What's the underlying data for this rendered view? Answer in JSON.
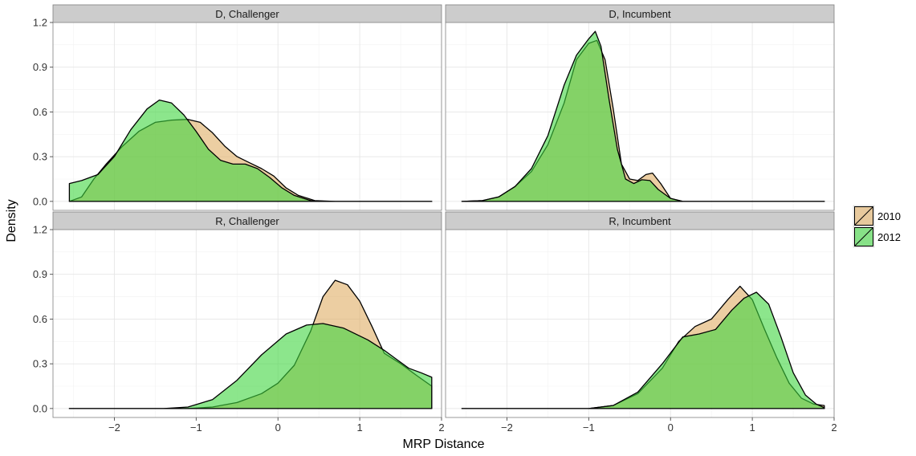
{
  "chart_data": {
    "type": "area",
    "xlabel": "MRP Distance",
    "ylabel": "Density",
    "xlim": [
      -2.75,
      2.0
    ],
    "ylim": [
      -0.06,
      1.2
    ],
    "x_ticks": [
      -2,
      -1,
      0,
      1,
      2
    ],
    "y_ticks": [
      0.0,
      0.3,
      0.6,
      0.9,
      1.2
    ],
    "x_tick_labels": [
      "−2",
      "−1",
      "0",
      "1",
      "2"
    ],
    "y_tick_labels": [
      "0.0",
      "0.3",
      "0.6",
      "0.9",
      "1.2"
    ],
    "grid": true,
    "legend": {
      "placement": "right",
      "entries": [
        {
          "name": "2010",
          "color": "#e8c28a"
        },
        {
          "name": "2012",
          "color": "#7fe07f"
        }
      ]
    },
    "panels": [
      {
        "title": "D, Challenger",
        "series": [
          {
            "name": "2010",
            "points": [
              [
                -2.55,
                0.0
              ],
              [
                -2.4,
                0.03
              ],
              [
                -2.25,
                0.15
              ],
              [
                -2.1,
                0.25
              ],
              [
                -1.9,
                0.37
              ],
              [
                -1.7,
                0.47
              ],
              [
                -1.5,
                0.53
              ],
              [
                -1.3,
                0.545
              ],
              [
                -1.1,
                0.55
              ],
              [
                -0.95,
                0.53
              ],
              [
                -0.8,
                0.46
              ],
              [
                -0.65,
                0.37
              ],
              [
                -0.5,
                0.3
              ],
              [
                -0.35,
                0.26
              ],
              [
                -0.2,
                0.22
              ],
              [
                -0.05,
                0.17
              ],
              [
                0.1,
                0.09
              ],
              [
                0.25,
                0.04
              ],
              [
                0.45,
                0.005
              ],
              [
                0.7,
                0.0
              ],
              [
                1.88,
                0.0
              ]
            ]
          },
          {
            "name": "2012",
            "points": [
              [
                -2.55,
                0.12
              ],
              [
                -2.4,
                0.14
              ],
              [
                -2.2,
                0.18
              ],
              [
                -2.0,
                0.3
              ],
              [
                -1.8,
                0.48
              ],
              [
                -1.6,
                0.62
              ],
              [
                -1.45,
                0.68
              ],
              [
                -1.3,
                0.66
              ],
              [
                -1.15,
                0.58
              ],
              [
                -1.0,
                0.47
              ],
              [
                -0.85,
                0.35
              ],
              [
                -0.7,
                0.275
              ],
              [
                -0.55,
                0.25
              ],
              [
                -0.4,
                0.25
              ],
              [
                -0.25,
                0.22
              ],
              [
                -0.1,
                0.16
              ],
              [
                0.05,
                0.09
              ],
              [
                0.2,
                0.04
              ],
              [
                0.4,
                0.005
              ],
              [
                0.6,
                0.0
              ],
              [
                1.88,
                0.0
              ]
            ]
          }
        ]
      },
      {
        "title": "D, Incumbent",
        "series": [
          {
            "name": "2010",
            "points": [
              [
                -2.55,
                0.0
              ],
              [
                -2.3,
                0.005
              ],
              [
                -2.1,
                0.03
              ],
              [
                -1.9,
                0.1
              ],
              [
                -1.7,
                0.2
              ],
              [
                -1.5,
                0.38
              ],
              [
                -1.3,
                0.66
              ],
              [
                -1.15,
                0.95
              ],
              [
                -1.0,
                1.06
              ],
              [
                -0.9,
                1.08
              ],
              [
                -0.8,
                0.95
              ],
              [
                -0.7,
                0.62
              ],
              [
                -0.6,
                0.25
              ],
              [
                -0.5,
                0.15
              ],
              [
                -0.4,
                0.14
              ],
              [
                -0.3,
                0.18
              ],
              [
                -0.22,
                0.19
              ],
              [
                -0.12,
                0.12
              ],
              [
                0.0,
                0.02
              ],
              [
                0.15,
                0.0
              ],
              [
                1.88,
                0.0
              ]
            ]
          },
          {
            "name": "2012",
            "points": [
              [
                -2.55,
                0.0
              ],
              [
                -2.3,
                0.005
              ],
              [
                -2.1,
                0.03
              ],
              [
                -1.9,
                0.1
              ],
              [
                -1.7,
                0.22
              ],
              [
                -1.5,
                0.44
              ],
              [
                -1.3,
                0.78
              ],
              [
                -1.15,
                0.98
              ],
              [
                -1.0,
                1.09
              ],
              [
                -0.92,
                1.14
              ],
              [
                -0.85,
                1.04
              ],
              [
                -0.75,
                0.68
              ],
              [
                -0.65,
                0.35
              ],
              [
                -0.55,
                0.15
              ],
              [
                -0.45,
                0.12
              ],
              [
                -0.35,
                0.145
              ],
              [
                -0.25,
                0.14
              ],
              [
                -0.15,
                0.08
              ],
              [
                0.0,
                0.02
              ],
              [
                0.15,
                0.0
              ],
              [
                1.88,
                0.0
              ]
            ]
          }
        ]
      },
      {
        "title": "R, Challenger",
        "series": [
          {
            "name": "2010",
            "points": [
              [
                -2.55,
                0.0
              ],
              [
                -1.1,
                0.0
              ],
              [
                -0.8,
                0.01
              ],
              [
                -0.5,
                0.04
              ],
              [
                -0.2,
                0.1
              ],
              [
                0.0,
                0.17
              ],
              [
                0.2,
                0.29
              ],
              [
                0.4,
                0.52
              ],
              [
                0.55,
                0.75
              ],
              [
                0.7,
                0.86
              ],
              [
                0.85,
                0.83
              ],
              [
                1.0,
                0.72
              ],
              [
                1.15,
                0.55
              ],
              [
                1.3,
                0.37
              ],
              [
                1.5,
                0.3
              ],
              [
                1.7,
                0.22
              ],
              [
                1.88,
                0.15
              ]
            ]
          },
          {
            "name": "2012",
            "points": [
              [
                -2.55,
                0.0
              ],
              [
                -1.4,
                0.0
              ],
              [
                -1.1,
                0.01
              ],
              [
                -0.8,
                0.06
              ],
              [
                -0.5,
                0.19
              ],
              [
                -0.2,
                0.36
              ],
              [
                0.1,
                0.5
              ],
              [
                0.35,
                0.56
              ],
              [
                0.55,
                0.57
              ],
              [
                0.8,
                0.54
              ],
              [
                1.1,
                0.46
              ],
              [
                1.3,
                0.39
              ],
              [
                1.45,
                0.33
              ],
              [
                1.6,
                0.27
              ],
              [
                1.75,
                0.24
              ],
              [
                1.88,
                0.21
              ]
            ]
          }
        ]
      },
      {
        "title": "R, Incumbent",
        "series": [
          {
            "name": "2010",
            "points": [
              [
                -2.55,
                0.0
              ],
              [
                -1.0,
                0.0
              ],
              [
                -0.7,
                0.02
              ],
              [
                -0.4,
                0.1
              ],
              [
                -0.1,
                0.27
              ],
              [
                0.1,
                0.45
              ],
              [
                0.3,
                0.55
              ],
              [
                0.5,
                0.6
              ],
              [
                0.7,
                0.73
              ],
              [
                0.85,
                0.82
              ],
              [
                1.0,
                0.73
              ],
              [
                1.15,
                0.53
              ],
              [
                1.3,
                0.34
              ],
              [
                1.45,
                0.17
              ],
              [
                1.6,
                0.07
              ],
              [
                1.75,
                0.03
              ],
              [
                1.88,
                0.02
              ]
            ]
          },
          {
            "name": "2012",
            "points": [
              [
                -2.55,
                0.0
              ],
              [
                -1.0,
                0.0
              ],
              [
                -0.7,
                0.02
              ],
              [
                -0.4,
                0.11
              ],
              [
                -0.1,
                0.3
              ],
              [
                0.15,
                0.48
              ],
              [
                0.35,
                0.5
              ],
              [
                0.55,
                0.53
              ],
              [
                0.75,
                0.66
              ],
              [
                0.9,
                0.74
              ],
              [
                1.05,
                0.78
              ],
              [
                1.2,
                0.7
              ],
              [
                1.35,
                0.48
              ],
              [
                1.5,
                0.24
              ],
              [
                1.65,
                0.09
              ],
              [
                1.78,
                0.03
              ],
              [
                1.88,
                0.005
              ]
            ]
          }
        ]
      }
    ]
  }
}
